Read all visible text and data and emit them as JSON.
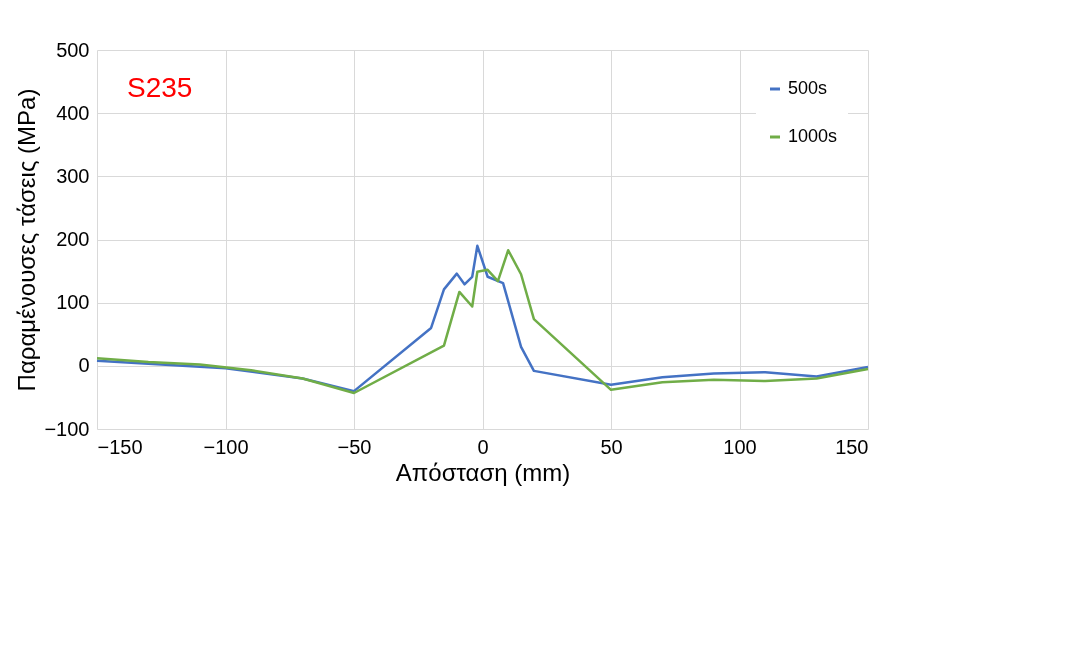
{
  "chart_data": {
    "type": "line",
    "xlabel": "Απόσταση (mm)",
    "ylabel": "Παραμένουσες τάσεις (MPa)",
    "annotations": [
      "S235"
    ],
    "xlim": [
      -150,
      150
    ],
    "xticks": [
      -150,
      -100,
      -50,
      0,
      50,
      100,
      150
    ],
    "ylim": [
      -100,
      500
    ],
    "yticks": [
      -100,
      0,
      100,
      200,
      300,
      400,
      500
    ],
    "grid": true,
    "legend": "top right",
    "marker": "none",
    "line_style": "solid",
    "series": [
      {
        "name": "500s",
        "color": "#4472c4",
        "x": [
          -150,
          -100,
          -70,
          -50,
          -20,
          -15,
          -10,
          -7,
          -4,
          -2,
          2,
          8,
          15,
          20,
          50,
          70,
          90,
          110,
          130,
          150
        ],
        "values": [
          8,
          -4,
          -20,
          -40,
          60,
          121,
          146,
          129,
          141,
          190,
          141,
          131,
          30,
          -8,
          -30,
          -18,
          -12,
          -10,
          -17,
          -2
        ]
      },
      {
        "name": "1000s",
        "color": "#70ad47",
        "x": [
          -150,
          -130,
          -110,
          -90,
          -70,
          -50,
          -15,
          -9,
          -4,
          -2,
          2,
          6,
          10,
          15,
          20,
          50,
          70,
          90,
          110,
          130,
          150
        ],
        "values": [
          12,
          6,
          2,
          -7,
          -20,
          -43,
          32,
          117,
          94,
          149,
          152,
          134,
          183,
          145,
          74,
          -38,
          -26,
          -22,
          -24,
          -20,
          -5
        ]
      }
    ]
  }
}
